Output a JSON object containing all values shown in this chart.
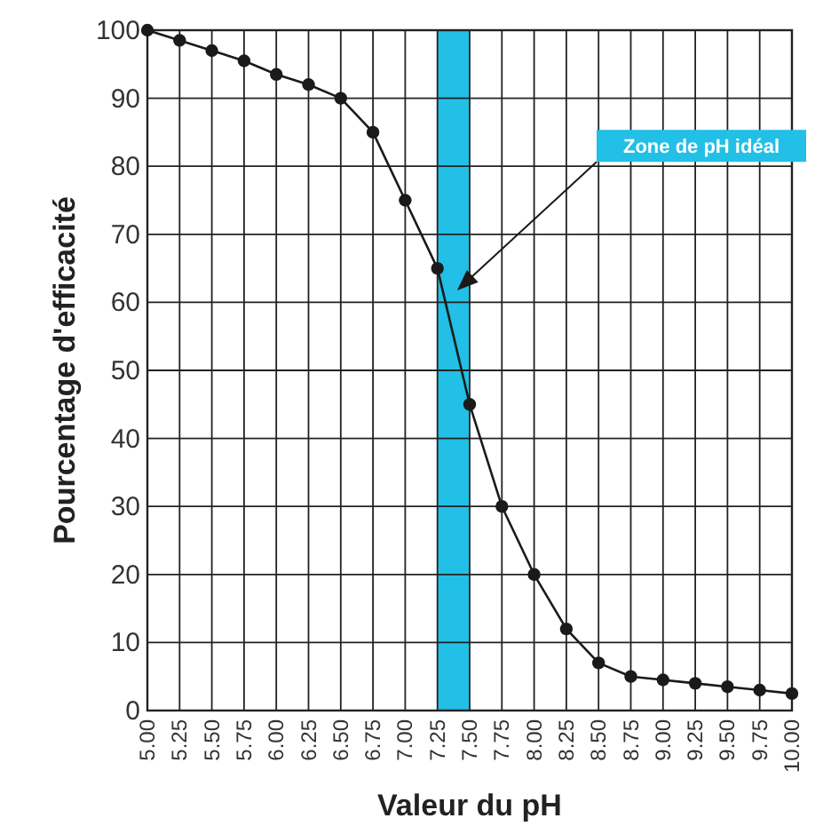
{
  "chart_data": {
    "type": "line",
    "xlabel": "Valeur du pH",
    "ylabel": "Pourcentage d'efficacité",
    "x": [
      5,
      5.25,
      5.5,
      5.75,
      6,
      6.25,
      6.5,
      6.75,
      7,
      7.25,
      7.5,
      7.75,
      8,
      8.25,
      8.5,
      8.75,
      9,
      9.25,
      9.5,
      9.75,
      10
    ],
    "series": [
      {
        "color": "#1a1a1a",
        "values": [
          100,
          98.5,
          97,
          95.5,
          93.5,
          92,
          90,
          85,
          75,
          65,
          45,
          30,
          20,
          12,
          7,
          5,
          4.5,
          4,
          3.5,
          3,
          2.5
        ]
      }
    ],
    "xlim": [
      5,
      10
    ],
    "xticks": [
      {
        "value": 5,
        "label": "5.00"
      },
      {
        "value": 5.25,
        "label": "5.25"
      },
      {
        "value": 5.5,
        "label": "5.50"
      },
      {
        "value": 5.75,
        "label": "5.75"
      },
      {
        "value": 6,
        "label": "6.00"
      },
      {
        "value": 6.25,
        "label": "6.25"
      },
      {
        "value": 6.5,
        "label": "6.50"
      },
      {
        "value": 6.75,
        "label": "6.75"
      },
      {
        "value": 7,
        "label": "7.00"
      },
      {
        "value": 7.25,
        "label": "7.25"
      },
      {
        "value": 7.5,
        "label": "7.50"
      },
      {
        "value": 7.75,
        "label": "7.75"
      },
      {
        "value": 8,
        "label": "8.00"
      },
      {
        "value": 8.25,
        "label": "8.25"
      },
      {
        "value": 8.5,
        "label": "8.50"
      },
      {
        "value": 8.75,
        "label": "8.75"
      },
      {
        "value": 9,
        "label": "9.00"
      },
      {
        "value": 9.25,
        "label": "9.25"
      },
      {
        "value": 9.5,
        "label": "9.50"
      },
      {
        "value": 9.75,
        "label": "9.75"
      },
      {
        "value": 10,
        "label": "10.00"
      }
    ],
    "ylim": [
      0,
      100
    ],
    "yticks": [
      0,
      10,
      20,
      30,
      40,
      50,
      60,
      70,
      80,
      90,
      100
    ],
    "grid": true,
    "marker": "circle",
    "line_style": "solid",
    "bands": [
      {
        "axis": "x",
        "from": 7.25,
        "to": 7.5,
        "color": "#22bfe6"
      }
    ],
    "annotations": [
      "Zone de pH idéal"
    ]
  }
}
